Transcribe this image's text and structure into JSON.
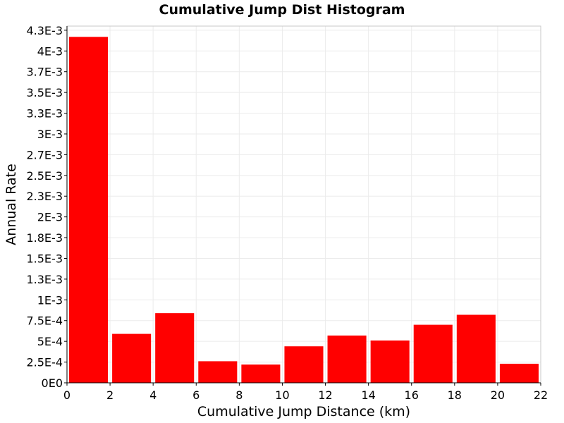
{
  "chart_data": {
    "type": "bar",
    "title": "Cumulative Jump Dist Histogram",
    "xlabel": "Cumulative Jump Distance (km)",
    "ylabel": "Annual Rate",
    "bar_color": "#ff0000",
    "grid": true,
    "xlim": [
      0,
      22
    ],
    "ylim": [
      0,
      0.0043
    ],
    "x_ticks": [
      {
        "value": 0,
        "label": "0"
      },
      {
        "value": 2,
        "label": "2"
      },
      {
        "value": 4,
        "label": "4"
      },
      {
        "value": 6,
        "label": "6"
      },
      {
        "value": 8,
        "label": "8"
      },
      {
        "value": 10,
        "label": "10"
      },
      {
        "value": 12,
        "label": "12"
      },
      {
        "value": 14,
        "label": "14"
      },
      {
        "value": 16,
        "label": "16"
      },
      {
        "value": 18,
        "label": "18"
      },
      {
        "value": 20,
        "label": "20"
      },
      {
        "value": 22,
        "label": "22"
      }
    ],
    "y_ticks": [
      {
        "value": 0,
        "label": "0E0"
      },
      {
        "value": 0.00025,
        "label": "2.5E-4"
      },
      {
        "value": 0.0005,
        "label": "5E-4"
      },
      {
        "value": 0.00075,
        "label": "7.5E-4"
      },
      {
        "value": 0.001,
        "label": "1E-3"
      },
      {
        "value": 0.00125,
        "label": "1.3E-3"
      },
      {
        "value": 0.0015,
        "label": "1.5E-3"
      },
      {
        "value": 0.00175,
        "label": "1.8E-3"
      },
      {
        "value": 0.002,
        "label": "2E-3"
      },
      {
        "value": 0.00225,
        "label": "2.3E-3"
      },
      {
        "value": 0.0025,
        "label": "2.5E-3"
      },
      {
        "value": 0.00275,
        "label": "2.7E-3"
      },
      {
        "value": 0.003,
        "label": "3E-3"
      },
      {
        "value": 0.00325,
        "label": "3.3E-3"
      },
      {
        "value": 0.0035,
        "label": "3.5E-3"
      },
      {
        "value": 0.00375,
        "label": "3.7E-3"
      },
      {
        "value": 0.004,
        "label": "4E-3"
      },
      {
        "value": 0.00425,
        "label": "4.3E-3"
      }
    ],
    "bins": [
      {
        "x_start": 0,
        "x_end": 2,
        "value": 0.00417
      },
      {
        "x_start": 2,
        "x_end": 4,
        "value": 0.00059
      },
      {
        "x_start": 4,
        "x_end": 6,
        "value": 0.00084
      },
      {
        "x_start": 6,
        "x_end": 8,
        "value": 0.00026
      },
      {
        "x_start": 8,
        "x_end": 10,
        "value": 0.00022
      },
      {
        "x_start": 10,
        "x_end": 12,
        "value": 0.00044
      },
      {
        "x_start": 12,
        "x_end": 14,
        "value": 0.00057
      },
      {
        "x_start": 14,
        "x_end": 16,
        "value": 0.00051
      },
      {
        "x_start": 16,
        "x_end": 18,
        "value": 0.0007
      },
      {
        "x_start": 18,
        "x_end": 20,
        "value": 0.00082
      },
      {
        "x_start": 20,
        "x_end": 22,
        "value": 0.00023
      }
    ]
  }
}
